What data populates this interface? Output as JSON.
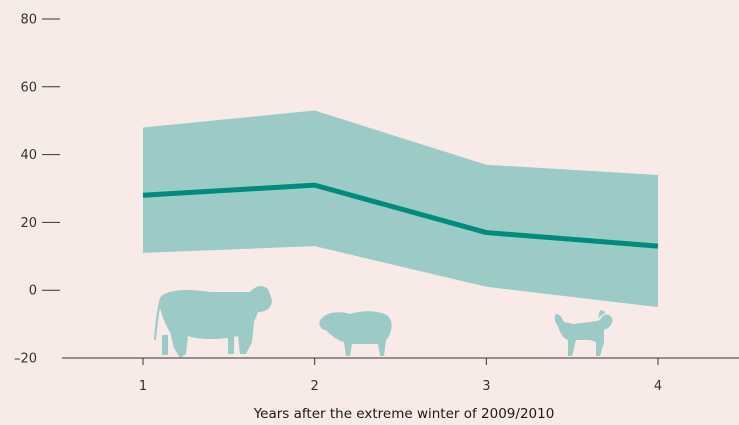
{
  "chart_data": {
    "type": "line",
    "title": "",
    "xlabel": "Years after the extreme winter of 2009/2010",
    "ylabel": "",
    "x": [
      1,
      2,
      3,
      4
    ],
    "y_ticks": [
      -20,
      0,
      20,
      40,
      60,
      80
    ],
    "y_tick_labels": [
      "–20",
      "0",
      "20",
      "40",
      "60",
      "80"
    ],
    "x_tick_labels": [
      "1",
      "2",
      "3",
      "4"
    ],
    "xlim": [
      0.45,
      4.5
    ],
    "ylim": [
      -20,
      80
    ],
    "grid": false,
    "series": [
      {
        "values": [
          28,
          31,
          17,
          13
        ]
      }
    ],
    "band": {
      "lower": [
        11,
        13,
        1,
        -5
      ],
      "upper": [
        48,
        53,
        37,
        34
      ]
    },
    "colors": {
      "background": "#f8ebe7",
      "line": "#008b7f",
      "band": "#9ccac6",
      "axis": "#333333",
      "animal": "#9ccac6"
    },
    "icons": [
      "cow-icon",
      "sheep-icon",
      "goat-icon"
    ]
  }
}
